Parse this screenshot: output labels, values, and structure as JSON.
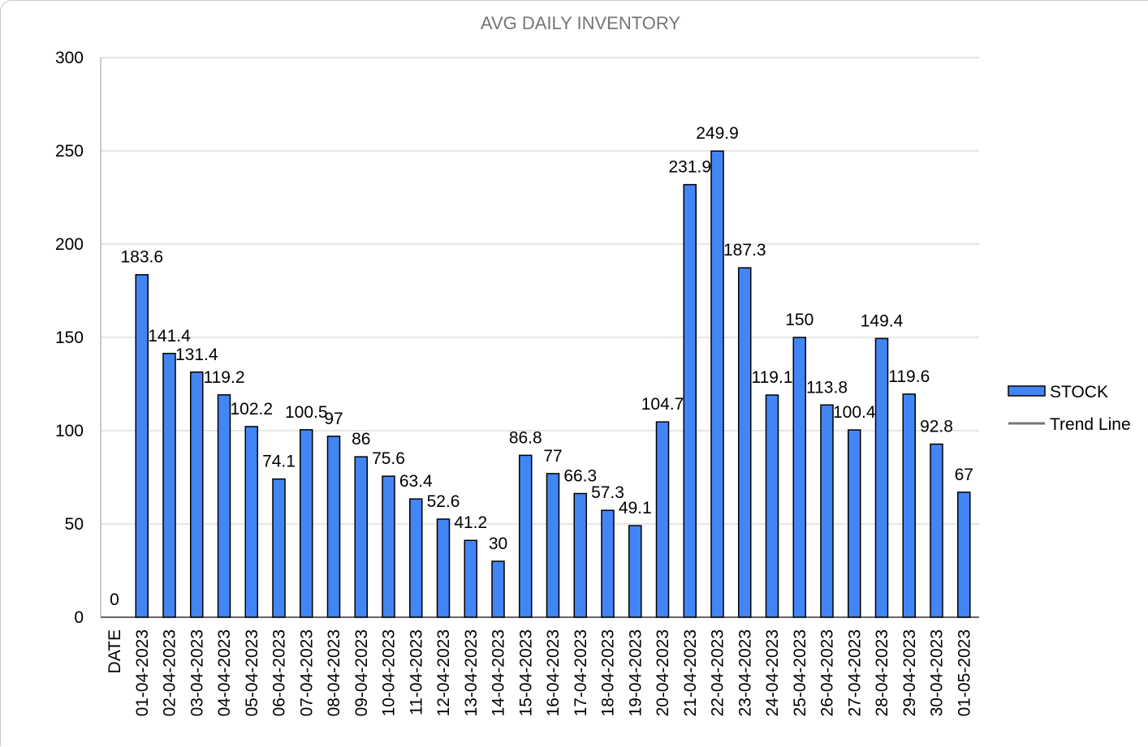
{
  "chart_data": {
    "type": "bar",
    "title": "AVG DAILY INVENTORY",
    "xlabel": "",
    "ylabel": "",
    "ylim": [
      0,
      300
    ],
    "yticks": [
      0,
      50,
      100,
      150,
      200,
      250,
      300
    ],
    "grid": true,
    "legend_position": "right",
    "categories": [
      "DATE",
      "01-04-2023",
      "02-04-2023",
      "03-04-2023",
      "04-04-2023",
      "05-04-2023",
      "06-04-2023",
      "07-04-2023",
      "08-04-2023",
      "09-04-2023",
      "10-04-2023",
      "11-04-2023",
      "12-04-2023",
      "13-04-2023",
      "14-04-2023",
      "15-04-2023",
      "16-04-2023",
      "17-04-2023",
      "18-04-2023",
      "19-04-2023",
      "20-04-2023",
      "21-04-2023",
      "22-04-2023",
      "23-04-2023",
      "24-04-2023",
      "25-04-2023",
      "26-04-2023",
      "27-04-2023",
      "28-04-2023",
      "29-04-2023",
      "30-04-2023",
      "01-05-2023"
    ],
    "series": [
      {
        "name": "STOCK",
        "color": "#4285f4",
        "values": [
          0,
          183.6,
          141.4,
          131.4,
          119.2,
          102.2,
          74.1,
          100.5,
          97,
          86,
          75.6,
          63.4,
          52.6,
          41.2,
          30,
          86.8,
          77,
          66.3,
          57.3,
          49.1,
          104.7,
          231.9,
          249.9,
          187.3,
          119.1,
          150,
          113.8,
          100.4,
          149.4,
          119.6,
          92.8,
          67
        ]
      }
    ],
    "legend": [
      {
        "label": "STOCK",
        "kind": "bar",
        "color": "#4285f4"
      },
      {
        "label": "Trend Line",
        "kind": "line",
        "color": "#757575"
      }
    ]
  }
}
